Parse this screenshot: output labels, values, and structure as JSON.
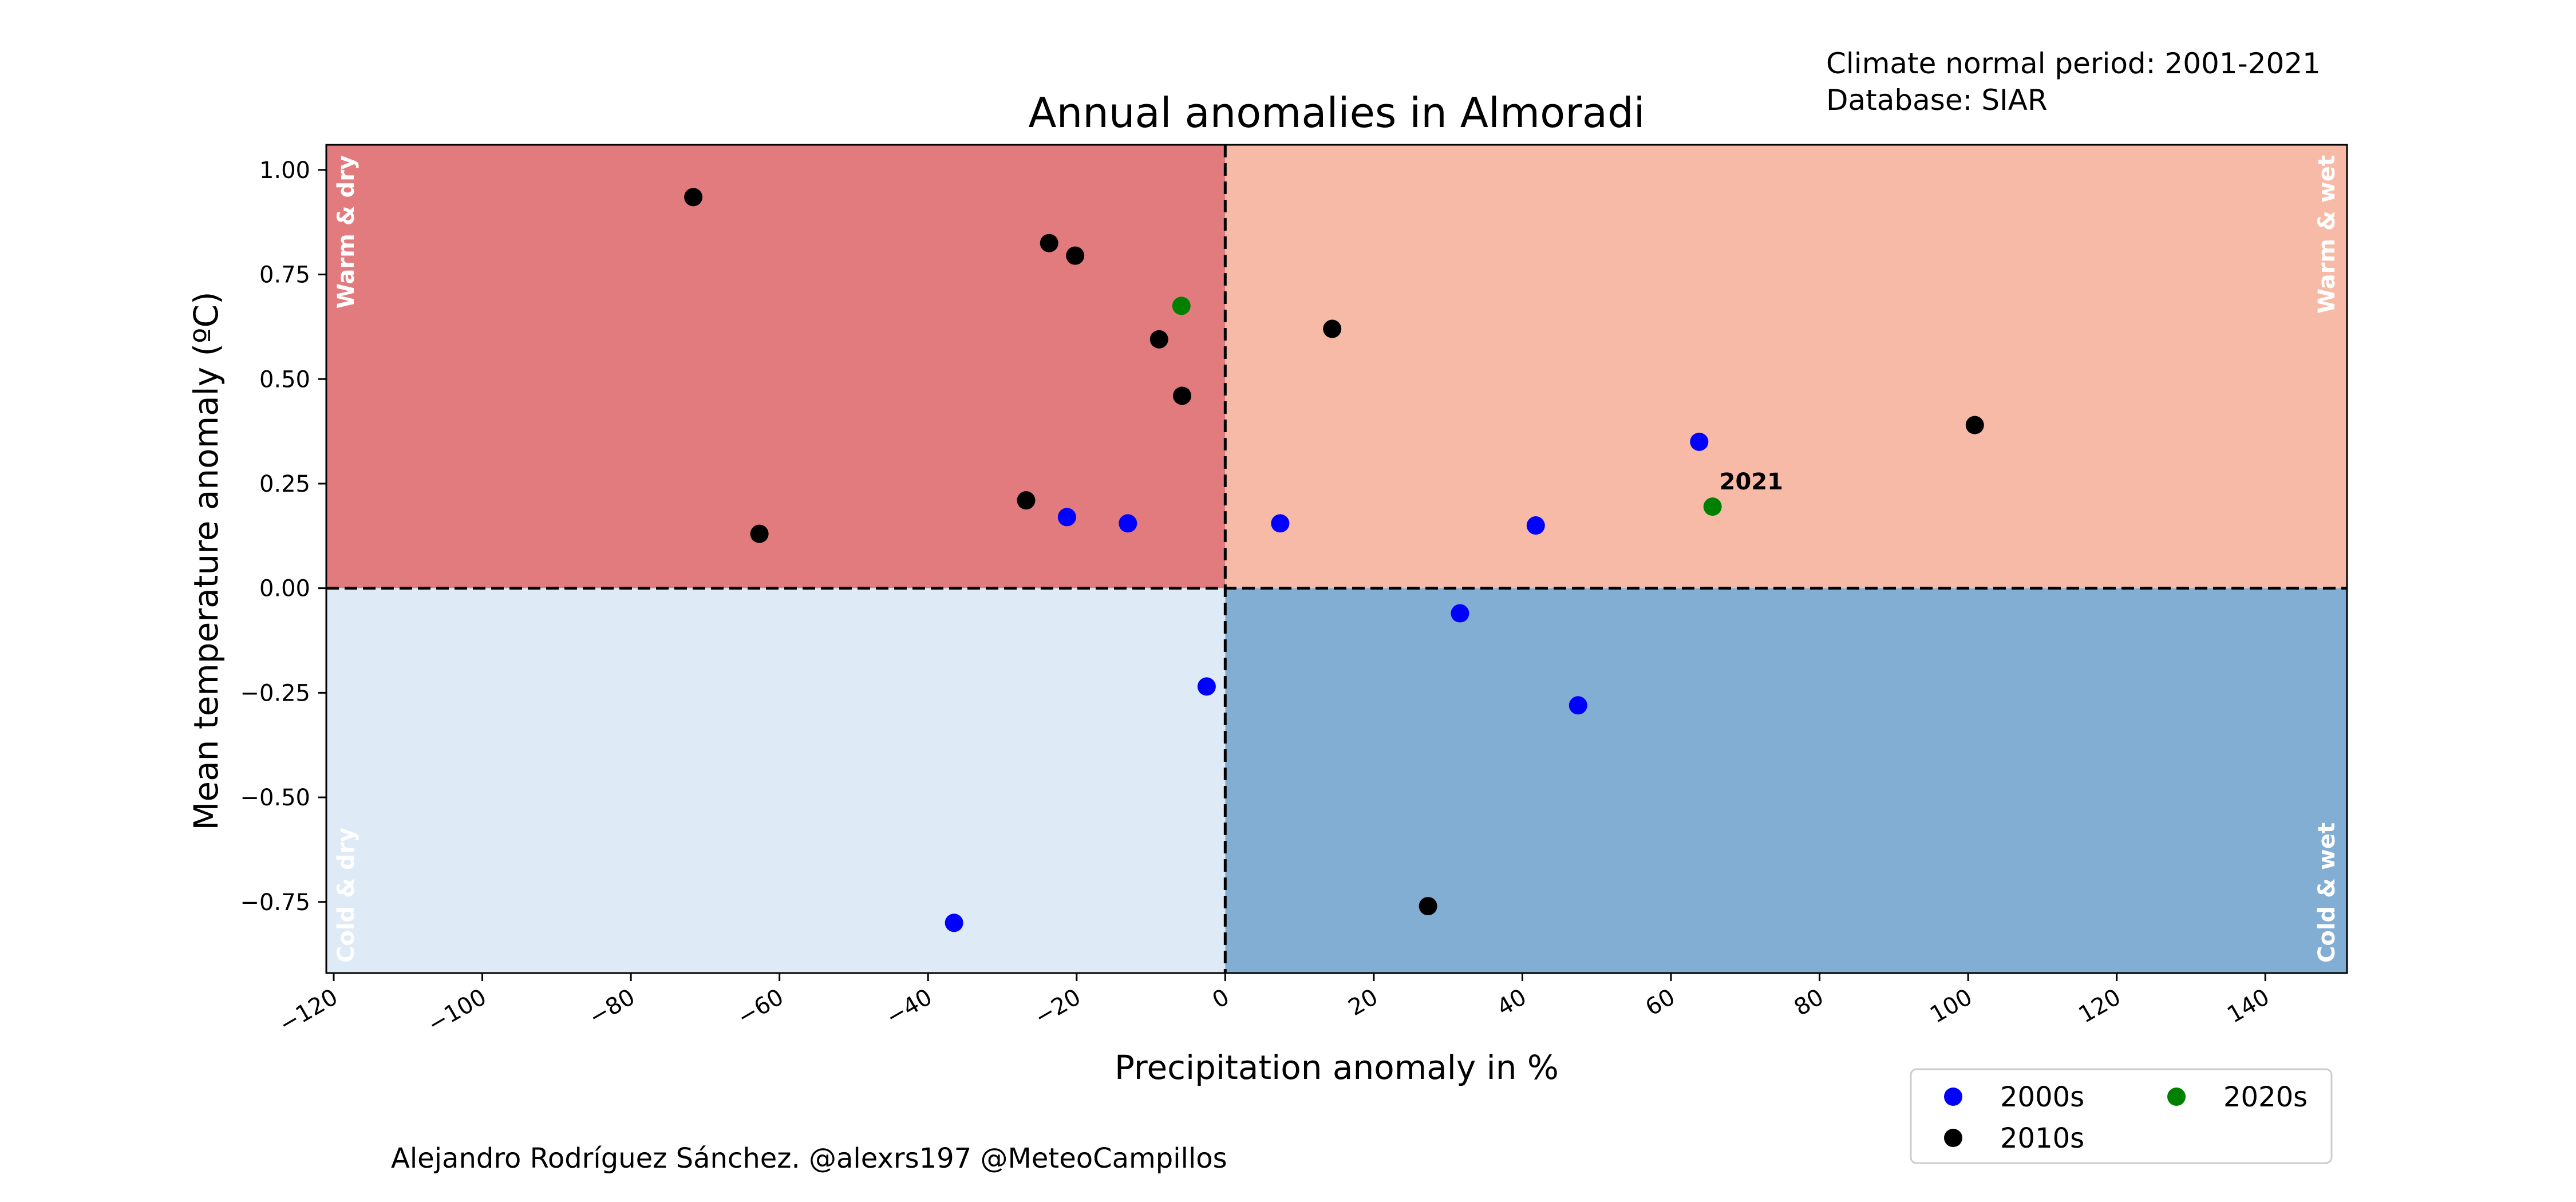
{
  "chart_data": {
    "type": "scatter",
    "title": "Annual anomalies in Almoradi",
    "xlabel": "Precipitation anomaly in %",
    "ylabel": "Mean temperature anomaly (ºC)",
    "xlim": [
      -121,
      151
    ],
    "ylim": [
      -0.92,
      1.06
    ],
    "xticks": [
      -120,
      -100,
      -80,
      -60,
      -40,
      -20,
      0,
      20,
      40,
      60,
      80,
      100,
      120,
      140
    ],
    "xtick_labels": [
      "−120",
      "−100",
      "−80",
      "−60",
      "−40",
      "−20",
      "0",
      "20",
      "40",
      "60",
      "80",
      "100",
      "120",
      "140"
    ],
    "yticks": [
      -0.75,
      -0.5,
      -0.25,
      0.0,
      0.25,
      0.5,
      0.75,
      1.0
    ],
    "ytick_labels": [
      "−0.75",
      "−0.50",
      "−0.25",
      "0.00",
      "0.25",
      "0.50",
      "0.75",
      "1.00"
    ],
    "grid": false,
    "reference_lines": {
      "x": 0,
      "y": 0,
      "style": "dashed"
    },
    "quadrants": [
      {
        "label": "Warm & dry",
        "x_side": "negative",
        "y_side": "positive",
        "color": "#e27b7d",
        "label_corner": "top-left"
      },
      {
        "label": "Warm & wet",
        "x_side": "positive",
        "y_side": "positive",
        "color": "#f7baa6",
        "label_corner": "top-right"
      },
      {
        "label": "Cold & dry",
        "x_side": "negative",
        "y_side": "negative",
        "color": "#deeaf6",
        "label_corner": "bottom-left"
      },
      {
        "label": "Cold & wet",
        "x_side": "positive",
        "y_side": "negative",
        "color": "#82aed4",
        "label_corner": "bottom-right"
      }
    ],
    "series": [
      {
        "name": "2000s",
        "color": "#0000ff",
        "points": [
          {
            "x": 63.8,
            "y": 0.35
          },
          {
            "x": 41.8,
            "y": 0.15
          },
          {
            "x": 7.4,
            "y": 0.155
          },
          {
            "x": -13.1,
            "y": 0.155
          },
          {
            "x": -21.3,
            "y": 0.17
          },
          {
            "x": 31.6,
            "y": -0.06
          },
          {
            "x": 47.5,
            "y": -0.28
          },
          {
            "x": -2.5,
            "y": -0.235
          },
          {
            "x": -36.5,
            "y": -0.8
          }
        ]
      },
      {
        "name": "2010s",
        "color": "#000000",
        "points": [
          {
            "x": -71.6,
            "y": 0.935
          },
          {
            "x": -23.7,
            "y": 0.825
          },
          {
            "x": -20.2,
            "y": 0.795
          },
          {
            "x": -8.9,
            "y": 0.595
          },
          {
            "x": -5.8,
            "y": 0.46
          },
          {
            "x": 14.4,
            "y": 0.62
          },
          {
            "x": 100.9,
            "y": 0.39
          },
          {
            "x": -26.8,
            "y": 0.21
          },
          {
            "x": -62.7,
            "y": 0.13
          },
          {
            "x": 27.3,
            "y": -0.76
          }
        ]
      },
      {
        "name": "2020s",
        "color": "#008000",
        "points": [
          {
            "x": -5.9,
            "y": 0.675
          },
          {
            "x": 65.6,
            "y": 0.195,
            "label": "2021"
          }
        ]
      }
    ],
    "legend": {
      "placement": "lower-right, below plot",
      "columns": 2
    }
  },
  "annotations": {
    "normal_period": "Climate normal period: 2001-2021",
    "database": "Database: SIAR",
    "credit": "Alejandro Rodríguez Sánchez. @alexrs197 @MeteoCampillos"
  }
}
